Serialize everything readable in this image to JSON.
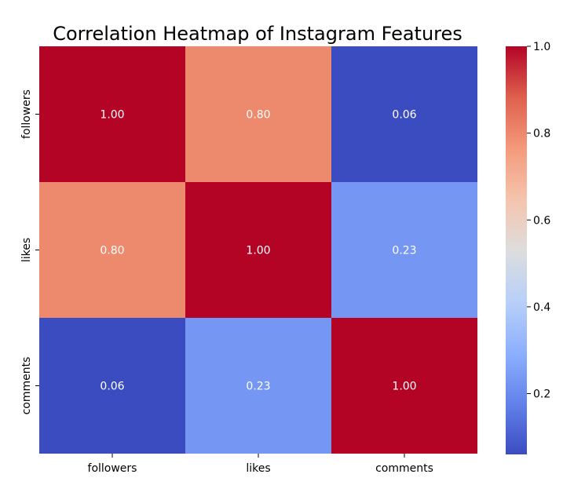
{
  "chart_data": {
    "type": "heatmap",
    "title": "Correlation Heatmap of Instagram Features",
    "x_categories": [
      "followers",
      "likes",
      "comments"
    ],
    "y_categories": [
      "followers",
      "likes",
      "comments"
    ],
    "values": [
      [
        1.0,
        0.8,
        0.06
      ],
      [
        0.8,
        1.0,
        0.23
      ],
      [
        0.06,
        0.23,
        1.0
      ]
    ],
    "annotations": [
      [
        "1.00",
        "0.80",
        "0.06"
      ],
      [
        "0.80",
        "1.00",
        "0.23"
      ],
      [
        "0.06",
        "0.23",
        "1.00"
      ]
    ],
    "colormap": "coolwarm",
    "vmin": 0.06,
    "vmax": 1.0,
    "colorbar_ticks": [
      0.2,
      0.4,
      0.6,
      0.8,
      1.0
    ],
    "colorbar_tick_labels": [
      "0.2",
      "0.4",
      "0.6",
      "0.8",
      "1.0"
    ],
    "xlabel": "",
    "ylabel": "",
    "grid": false,
    "colorbar_position": "right"
  }
}
